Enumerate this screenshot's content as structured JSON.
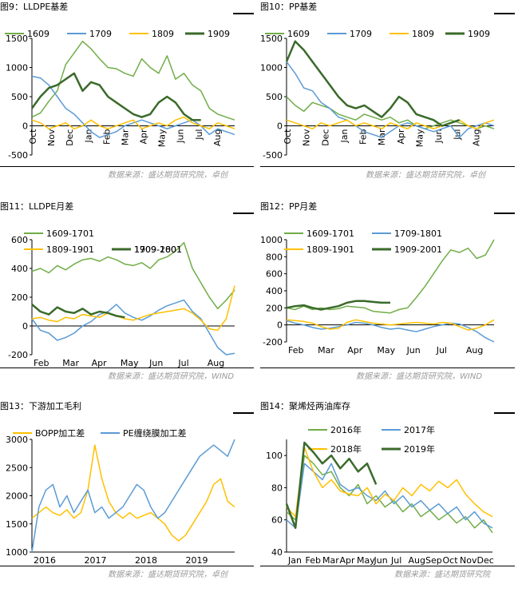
{
  "panels": [
    {
      "id": "p9",
      "caption": "图9：LLDPE基差",
      "source": "数据来源：盛达期货研究院，卓创",
      "chart_data": {
        "type": "line",
        "yticks": [
          -500,
          0,
          500,
          1000,
          1500
        ],
        "ylim": [
          -500,
          1500
        ],
        "xticks": [
          "Oct",
          "Nov",
          "Dec",
          "Jan",
          "Feb",
          "Mar",
          "Apr",
          "May",
          "Jun",
          "Jul",
          "Aug"
        ],
        "xlabel_rotated": true,
        "series": [
          {
            "name": "1609",
            "color": "#70ad47",
            "width": 1.5,
            "values": [
              150,
              220,
              420,
              600,
              1050,
              1250,
              1450,
              1320,
              1150,
              1000,
              980,
              900,
              850,
              1150,
              1000,
              900,
              1200,
              800,
              900,
              700,
              600,
              300,
              200,
              150,
              100
            ]
          },
          {
            "name": "1709",
            "color": "#5b9bd5",
            "width": 1.5,
            "values": [
              850,
              820,
              700,
              500,
              300,
              200,
              50,
              -100,
              -200,
              -150,
              -100,
              0,
              50,
              100,
              50,
              0,
              -50,
              0,
              50,
              100,
              0,
              -150,
              -50,
              -100,
              -150
            ]
          },
          {
            "name": "1809",
            "color": "#ffc000",
            "width": 1.5,
            "values": [
              100,
              50,
              -50,
              0,
              50,
              -50,
              0,
              100,
              0,
              -50,
              0,
              50,
              100,
              -50,
              0,
              50,
              0,
              100,
              150,
              50,
              0,
              -50,
              50,
              0,
              -50
            ]
          },
          {
            "name": "1909",
            "color": "#3a6a2a",
            "width": 2.5,
            "values": [
              300,
              500,
              650,
              700,
              800,
              900,
              600,
              750,
              700,
              500,
              400,
              300,
              200,
              150,
              200,
              400,
              500,
              400,
              200,
              100,
              100,
              null,
              null,
              null,
              null
            ]
          }
        ]
      }
    },
    {
      "id": "p10",
      "caption": "图10：PP基差",
      "source": "数据来源：盛达期货研究院，卓创",
      "chart_data": {
        "type": "line",
        "yticks": [
          -500,
          0,
          500,
          1000,
          1500
        ],
        "ylim": [
          -500,
          1500
        ],
        "xticks": [
          "Oct",
          "Nov",
          "Dec",
          "Jan",
          "Feb",
          "Mar",
          "Apr",
          "May",
          "Jun",
          "Jul",
          "Aug"
        ],
        "xlabel_rotated": true,
        "series": [
          {
            "name": "1609",
            "color": "#70ad47",
            "width": 1.5,
            "values": [
              500,
              350,
              250,
              400,
              350,
              300,
              200,
              150,
              100,
              200,
              150,
              100,
              150,
              50,
              100,
              0,
              -50,
              0,
              50,
              100,
              50,
              0,
              -50,
              0,
              -50
            ]
          },
          {
            "name": "1709",
            "color": "#5b9bd5",
            "width": 1.5,
            "values": [
              1100,
              900,
              650,
              600,
              400,
              300,
              150,
              100,
              0,
              -100,
              -150,
              -200,
              -100,
              0,
              50,
              0,
              -50,
              -100,
              -50,
              0,
              -200,
              -50,
              0,
              50,
              0
            ]
          },
          {
            "name": "1809",
            "color": "#ffc000",
            "width": 1.5,
            "values": [
              100,
              50,
              0,
              -50,
              50,
              0,
              50,
              100,
              0,
              50,
              0,
              -50,
              50,
              0,
              -50,
              50,
              0,
              -50,
              0,
              50,
              100,
              0,
              -50,
              50,
              100
            ]
          },
          {
            "name": "1909",
            "color": "#3a6a2a",
            "width": 2.5,
            "values": [
              1100,
              1450,
              1300,
              1100,
              900,
              700,
              500,
              350,
              300,
              350,
              250,
              150,
              300,
              500,
              400,
              200,
              150,
              100,
              0,
              50,
              100,
              null,
              null,
              null,
              null
            ]
          }
        ]
      }
    },
    {
      "id": "p11",
      "caption": "图11：LLDPE月差",
      "source": "数据来源：盛达期货研究院，WIND",
      "chart_data": {
        "type": "line",
        "yticks": [
          -200,
          0,
          200,
          400,
          600
        ],
        "ylim": [
          -200,
          600
        ],
        "xticks": [
          "Feb",
          "Mar",
          "Apr",
          "May",
          "Jun",
          "Jul",
          "Aug"
        ],
        "xlabel_rotated": false,
        "series": [
          {
            "name": "1609-1701",
            "color": "#70ad47",
            "width": 1.5,
            "values": [
              380,
              400,
              370,
              420,
              390,
              430,
              460,
              470,
              450,
              480,
              460,
              430,
              420,
              440,
              400,
              460,
              480,
              520,
              580,
              400,
              300,
              200,
              120,
              180,
              250
            ]
          },
          {
            "name": "1709-1801",
            "color": "#5b9bd5",
            "width": 1.5,
            "values": [
              50,
              -30,
              -50,
              -100,
              -80,
              -50,
              0,
              30,
              80,
              100,
              150,
              90,
              60,
              40,
              70,
              110,
              140,
              160,
              180,
              100,
              50,
              -50,
              -150,
              -200,
              -190
            ]
          },
          {
            "name": "1809-1901",
            "color": "#ffc000",
            "width": 1.5,
            "values": [
              50,
              60,
              40,
              30,
              60,
              50,
              80,
              70,
              60,
              90,
              70,
              50,
              40,
              60,
              80,
              90,
              100,
              110,
              120,
              90,
              40,
              -20,
              -30,
              50,
              280
            ]
          },
          {
            "name": "1909-2001",
            "color": "#3a6a2a",
            "width": 2.5,
            "values": [
              150,
              100,
              80,
              130,
              100,
              90,
              120,
              80,
              100,
              90,
              70,
              60,
              null,
              null,
              null,
              null,
              null,
              null,
              null,
              null,
              null,
              null,
              null,
              null,
              null
            ]
          }
        ]
      }
    },
    {
      "id": "p12",
      "caption": "图12：PP月差",
      "source": "数据来源：盛达期货研究院，WIND",
      "chart_data": {
        "type": "line",
        "yticks": [
          -200,
          0,
          200,
          400,
          600,
          800,
          1000
        ],
        "ylim": [
          -200,
          1000
        ],
        "xticks": [
          "Feb",
          "Mar",
          "Apr",
          "May",
          "Jun",
          "Jul",
          "Aug"
        ],
        "xlabel_rotated": false,
        "series": [
          {
            "name": "1609-1701",
            "color": "#70ad47",
            "width": 1.5,
            "values": [
              200,
              180,
              220,
              180,
              200,
              180,
              190,
              220,
              210,
              200,
              160,
              150,
              140,
              180,
              200,
              320,
              450,
              600,
              750,
              880,
              850,
              900,
              780,
              820,
              1000
            ]
          },
          {
            "name": "1709-1801",
            "color": "#5b9bd5",
            "width": 1.5,
            "values": [
              50,
              20,
              0,
              -30,
              -50,
              -40,
              -20,
              0,
              30,
              20,
              0,
              -30,
              -50,
              -40,
              -60,
              -80,
              -50,
              -20,
              0,
              20,
              10,
              -30,
              -80,
              -150,
              -200
            ]
          },
          {
            "name": "1809-1901",
            "color": "#ffc000",
            "width": 1.5,
            "values": [
              60,
              50,
              40,
              20,
              -20,
              -50,
              -40,
              30,
              60,
              40,
              20,
              10,
              0,
              10,
              20,
              30,
              20,
              10,
              30,
              20,
              -20,
              -60,
              -40,
              0,
              60
            ]
          },
          {
            "name": "1909-2001",
            "color": "#3a6a2a",
            "width": 2.5,
            "values": [
              200,
              220,
              230,
              200,
              180,
              200,
              220,
              260,
              280,
              280,
              270,
              260,
              260,
              null,
              null,
              null,
              null,
              null,
              null,
              null,
              null,
              null,
              null,
              null,
              null
            ]
          }
        ]
      }
    },
    {
      "id": "p13",
      "caption": "图13：下游加工毛利",
      "source": "数据来源：盛达期货研究院，卓创",
      "chart_data": {
        "type": "line",
        "yticks": [
          1000,
          1500,
          2000,
          2500,
          3000
        ],
        "ylim": [
          1000,
          3000
        ],
        "xticks": [
          "2016",
          "2017",
          "2018",
          "2019"
        ],
        "xlabel_rotated": false,
        "series": [
          {
            "name": "BOPP加工差",
            "color": "#ffc000",
            "width": 1.5,
            "values": [
              1600,
              1700,
              1800,
              1700,
              1650,
              1750,
              1600,
              1700,
              2100,
              2900,
              2300,
              1900,
              1700,
              1600,
              1700,
              1600,
              1650,
              1700,
              1600,
              1500,
              1300,
              1200,
              1300,
              1500,
              1700,
              1900,
              2200,
              2300,
              1900,
              1800
            ]
          },
          {
            "name": "PE缠绕膜加工差",
            "color": "#5b9bd5",
            "width": 1.5,
            "values": [
              1000,
              1800,
              2100,
              2200,
              1800,
              2000,
              1700,
              1900,
              2100,
              1700,
              1800,
              1600,
              1700,
              1800,
              2000,
              2200,
              2100,
              1800,
              1600,
              1700,
              1900,
              2100,
              2300,
              2500,
              2700,
              2800,
              2900,
              2800,
              2700,
              3000
            ]
          }
        ]
      }
    },
    {
      "id": "p14",
      "caption": "图14：聚烯烃两油库存",
      "source": "数据来源：盛达期货研究院",
      "chart_data": {
        "type": "line",
        "yticks": [
          40,
          60,
          80,
          100
        ],
        "ylim": [
          40,
          110
        ],
        "xticks": [
          "Jan",
          "Feb",
          "Mar",
          "Apr",
          "May",
          "Jun",
          "Jul",
          "Aug",
          "Sep",
          "Oct",
          "Nov",
          "Dec"
        ],
        "xlabel_rotated": false,
        "series": [
          {
            "name": "2016年",
            "color": "#70ad47",
            "width": 1.5,
            "values": [
              65,
              60,
              100,
              95,
              88,
              90,
              80,
              75,
              82,
              70,
              75,
              68,
              72,
              65,
              70,
              62,
              66,
              60,
              64,
              58,
              62,
              55,
              60,
              52
            ]
          },
          {
            "name": "2017年",
            "color": "#5b9bd5",
            "width": 1.5,
            "values": [
              60,
              55,
              95,
              90,
              85,
              95,
              82,
              78,
              80,
              75,
              72,
              78,
              70,
              75,
              68,
              72,
              66,
              70,
              64,
              68,
              60,
              65,
              58,
              55
            ]
          },
          {
            "name": "2018年",
            "color": "#ffc000",
            "width": 1.5,
            "values": [
              68,
              62,
              105,
              90,
              80,
              85,
              78,
              76,
              75,
              80,
              70,
              76,
              72,
              80,
              75,
              82,
              78,
              84,
              80,
              85,
              76,
              70,
              65,
              62
            ]
          },
          {
            "name": "2019年",
            "color": "#3a6a2a",
            "width": 2.5,
            "values": [
              70,
              55,
              108,
              102,
              95,
              100,
              92,
              98,
              90,
              95,
              82,
              null,
              null,
              null,
              null,
              null,
              null,
              null,
              null,
              null,
              null,
              null,
              null,
              null
            ]
          }
        ]
      }
    }
  ]
}
